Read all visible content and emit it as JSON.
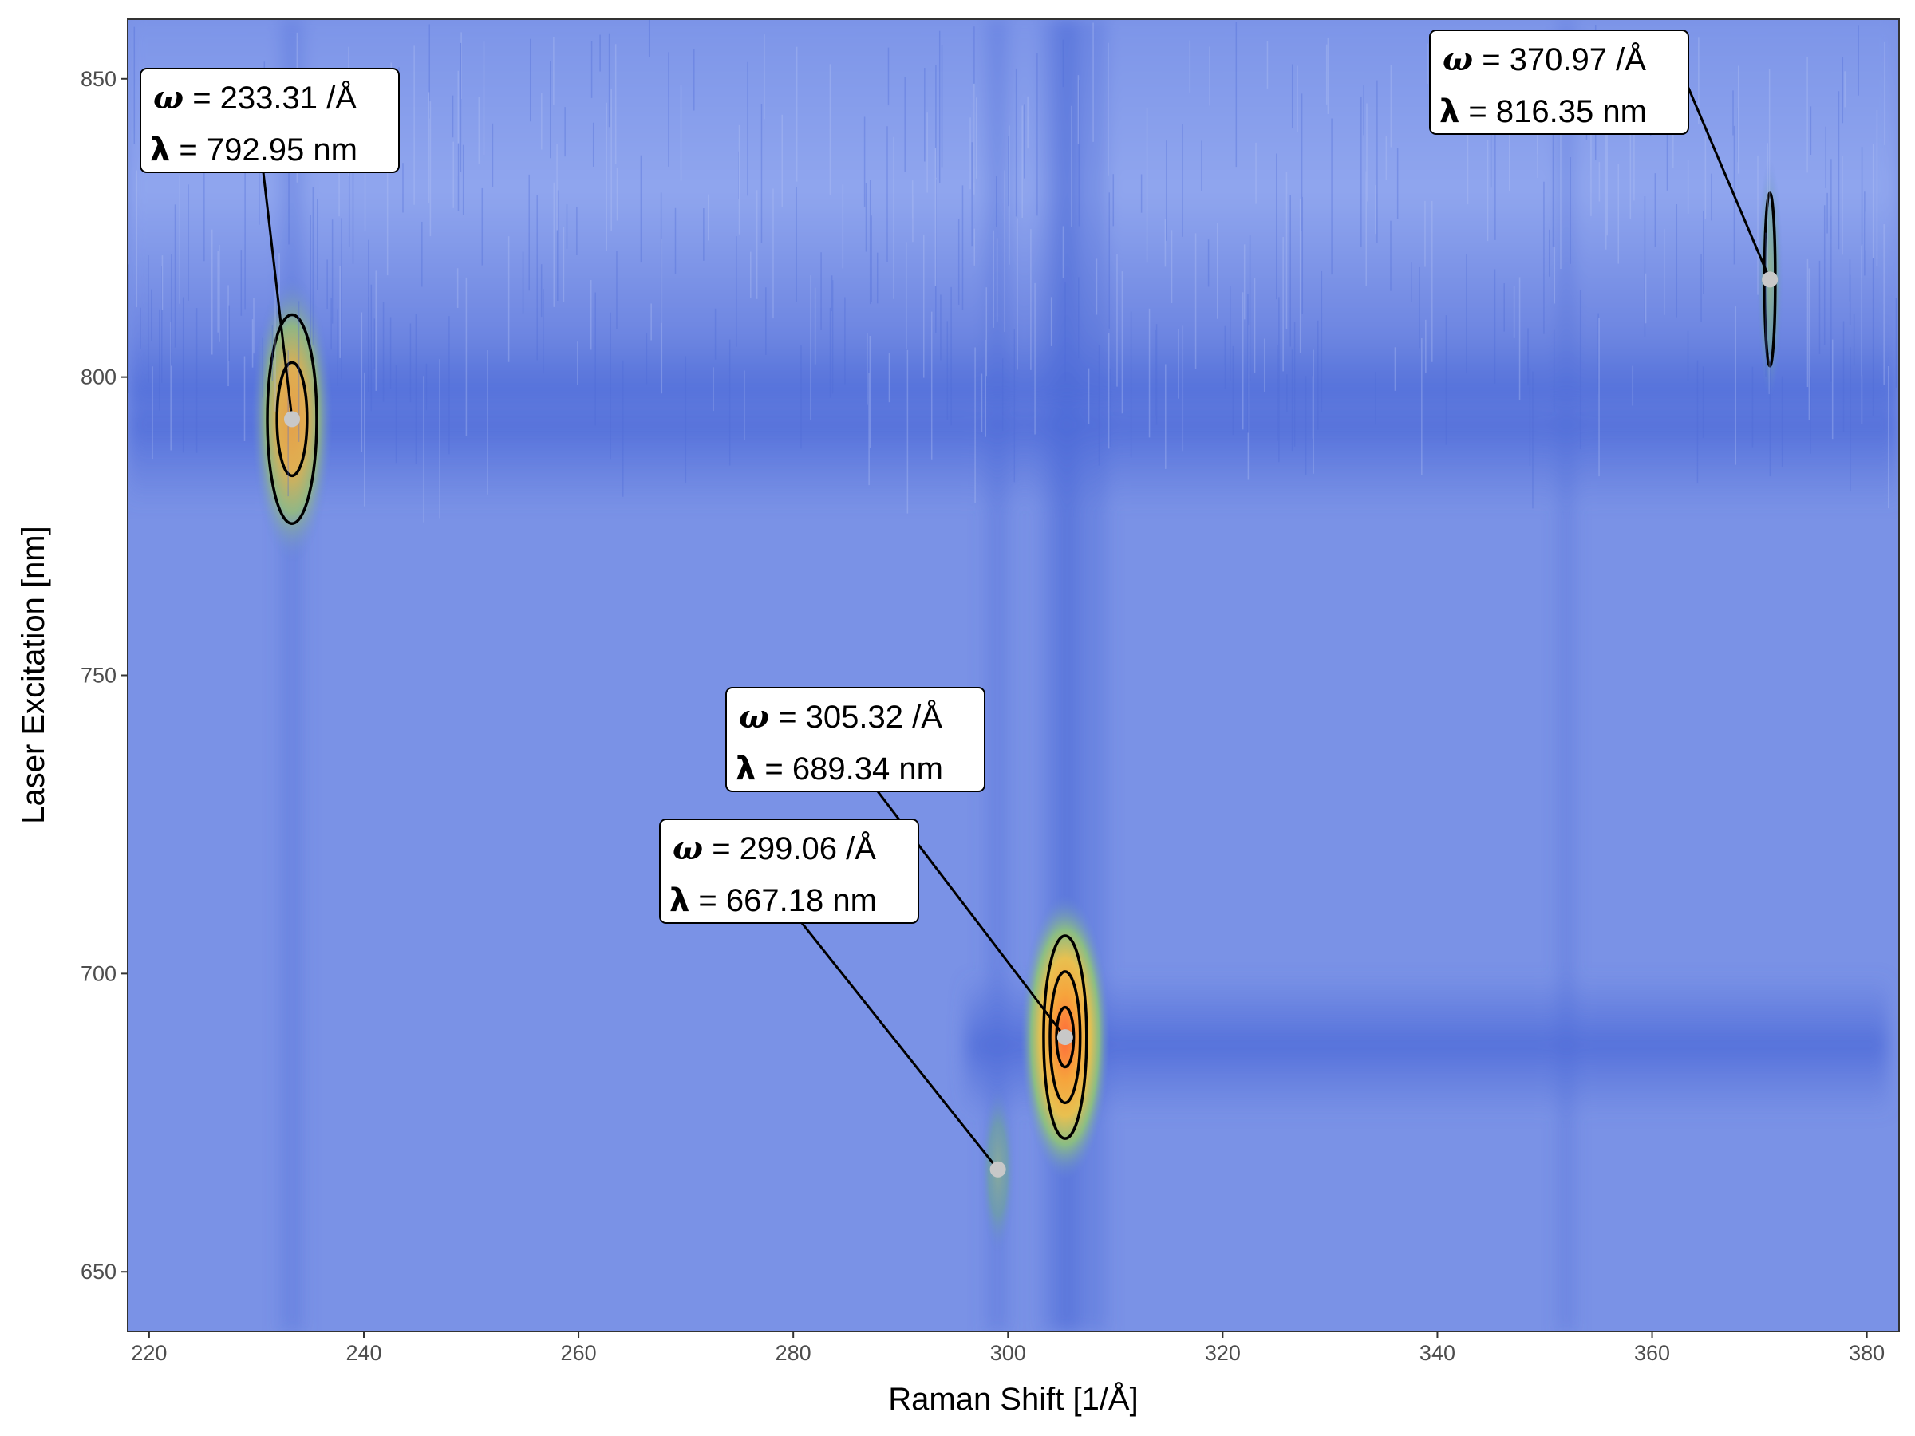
{
  "chart_data": {
    "type": "heatmap",
    "title": "",
    "xlabel": "Raman Shift [1/Å]",
    "ylabel": "Laser Excitation [nm]",
    "xlim": [
      218,
      383
    ],
    "ylim": [
      640,
      860
    ],
    "x_ticks": [
      220,
      240,
      260,
      280,
      300,
      320,
      340,
      360,
      380
    ],
    "y_ticks": [
      650,
      700,
      750,
      800,
      850
    ],
    "grid": false,
    "legend": "none",
    "colors": {
      "background": "#7a92e6",
      "band": "#5c78de",
      "low": "#4a6ad8",
      "mid": "#7fbf7a",
      "high": "#f4b040",
      "peak": "#ff6a3a",
      "marker": "#c8c8c8",
      "contour": "#000000"
    },
    "peaks": [
      {
        "omega": 233.31,
        "lambda": 792.95,
        "intensity": 0.85,
        "label_omega": "= 233.31 /Å",
        "label_lambda": "= 792.95 nm"
      },
      {
        "omega": 305.32,
        "lambda": 689.34,
        "intensity": 1.0,
        "label_omega": "= 305.32 /Å",
        "label_lambda": "= 689.34 nm"
      },
      {
        "omega": 299.06,
        "lambda": 667.18,
        "intensity": 0.35,
        "label_omega": "= 299.06 /Å",
        "label_lambda": "= 667.18 nm"
      },
      {
        "omega": 370.97,
        "lambda": 816.35,
        "intensity": 0.45,
        "label_omega": "= 370.97 /Å",
        "label_lambda": "= 816.35 nm"
      }
    ],
    "annotation_symbols": {
      "omega": "ω",
      "lambda": "λ"
    }
  }
}
